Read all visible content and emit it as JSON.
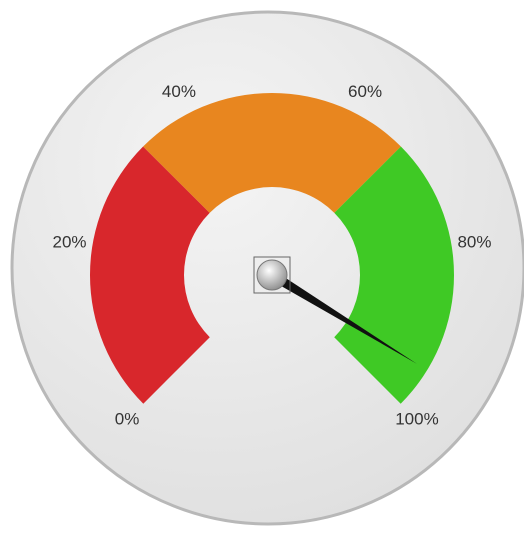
{
  "chart_data": {
    "type": "gauge",
    "ylim": [
      0,
      100
    ],
    "yticks": [
      {
        "value": 0,
        "label": "0%"
      },
      {
        "value": 20,
        "label": "20%"
      },
      {
        "value": 40,
        "label": "40%"
      },
      {
        "value": 60,
        "label": "60%"
      },
      {
        "value": 80,
        "label": "80%"
      },
      {
        "value": 100,
        "label": "100%"
      }
    ],
    "bands": [
      {
        "from": 0,
        "to": 33.3,
        "color": "#d8272c"
      },
      {
        "from": 33.3,
        "to": 66.7,
        "color": "#e8861f"
      },
      {
        "from": 66.7,
        "to": 100,
        "color": "#3fc925"
      }
    ],
    "value": 95
  }
}
